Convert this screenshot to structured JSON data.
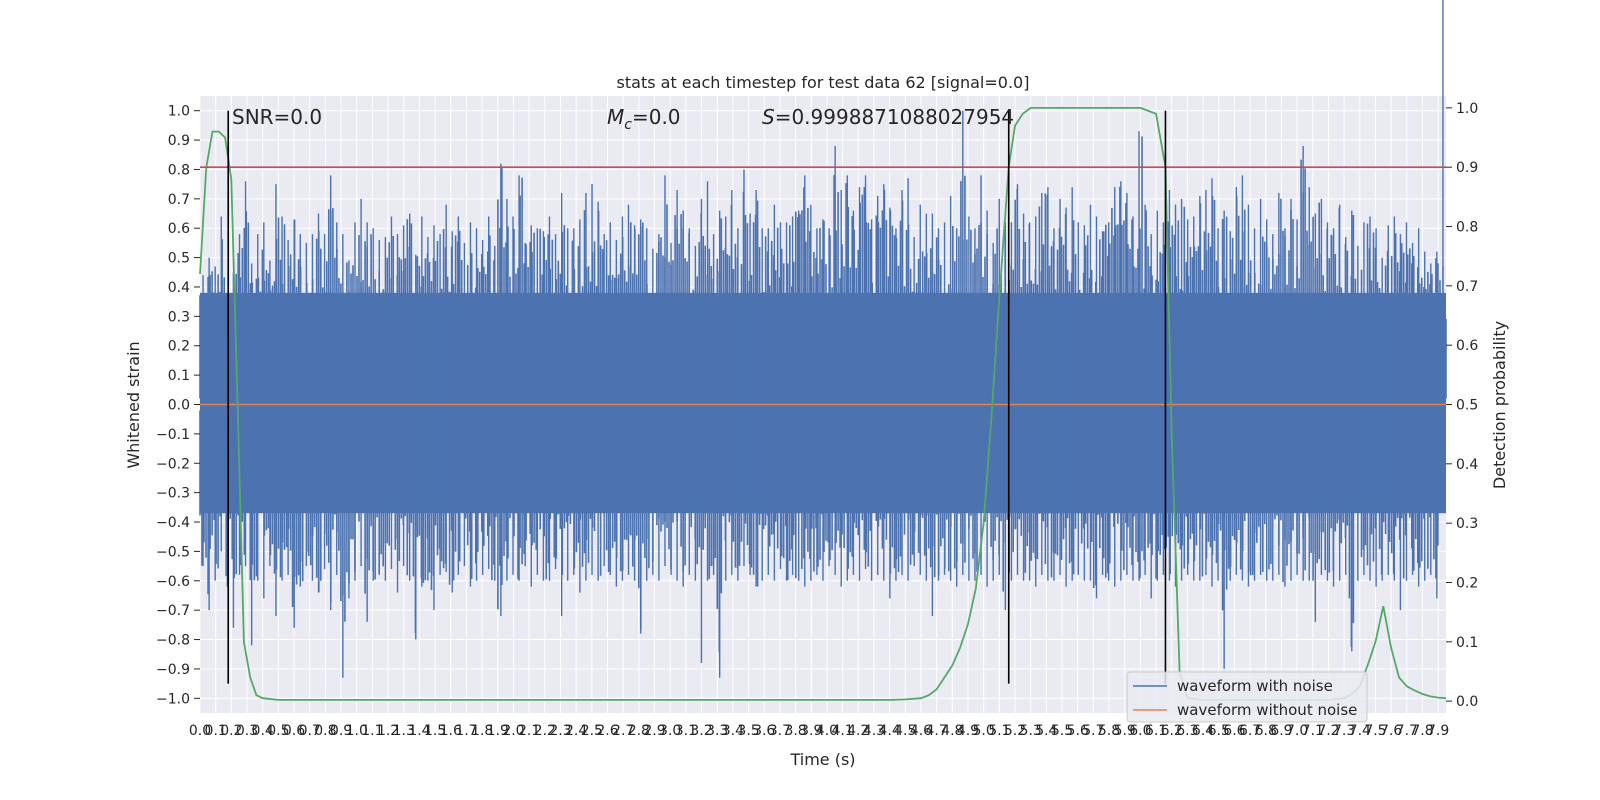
{
  "chart_data": {
    "type": "line",
    "title": "stats at each timestep for test data 62 [signal=0.0]",
    "xlabel": "Time (s)",
    "ylabel": "Whitened strain",
    "y2label": "Detection probability",
    "xlim": [
      0.0,
      7.95
    ],
    "ylim": [
      -1.05,
      1.05
    ],
    "y2lim": [
      -0.02,
      1.02
    ],
    "x_ticks": [
      0.0,
      0.1,
      0.2,
      0.3,
      0.4,
      0.5,
      0.6,
      0.7,
      0.8,
      0.9,
      1.0,
      1.1,
      1.2,
      1.3,
      1.4,
      1.5,
      1.6,
      1.7,
      1.8,
      1.9,
      2.0,
      2.1,
      2.2,
      2.3,
      2.4,
      2.5,
      2.6,
      2.7,
      2.8,
      2.9,
      3.0,
      3.1,
      3.2,
      3.3,
      3.4,
      3.5,
      3.6,
      3.7,
      3.8,
      3.9,
      4.0,
      4.1,
      4.2,
      4.3,
      4.4,
      4.5,
      4.6,
      4.7,
      4.8,
      4.9,
      5.0,
      5.1,
      5.2,
      5.3,
      5.4,
      5.5,
      5.6,
      5.7,
      5.8,
      5.9,
      6.0,
      6.1,
      6.2,
      6.3,
      6.4,
      6.5,
      6.6,
      6.7,
      6.8,
      6.9,
      7.0,
      7.1,
      7.2,
      7.3,
      7.4,
      7.5,
      7.6,
      7.7,
      7.8,
      7.9
    ],
    "y_ticks": [
      -1.0,
      -0.9,
      -0.8,
      -0.7,
      -0.6,
      -0.5,
      -0.4,
      -0.3,
      -0.2,
      -0.1,
      0.0,
      0.1,
      0.2,
      0.3,
      0.4,
      0.5,
      0.6,
      0.7,
      0.8,
      0.9,
      1.0
    ],
    "y2_ticks": [
      0.0,
      0.1,
      0.2,
      0.3,
      0.4,
      0.5,
      0.6,
      0.7,
      0.8,
      0.9,
      1.0
    ],
    "threshold": 0.9,
    "vlines": [
      0.18,
      5.16,
      6.16
    ],
    "annotations": [
      "SNR=0.0",
      "M_c=0.0",
      "S=0.9998871088027954"
    ],
    "legend": {
      "position": "lower-right"
    },
    "grid": true,
    "series": [
      {
        "name": "waveform with noise",
        "color": "#4c72b0",
        "axis": "left",
        "x_range": [
          0.0,
          7.95
        ],
        "positive_envelope": [
          0.44,
          0.5,
          0.47,
          0.64,
          0.37,
          0.45,
          0.58,
          0.76,
          0.48,
          0.58,
          0.62,
          0.49,
          0.75,
          0.64,
          0.56,
          0.63,
          0.58,
          0.55,
          0.58,
          0.65,
          0.58,
          0.78,
          0.62,
          0.58,
          0.49,
          0.62,
          0.7,
          0.62,
          0.6,
          0.56,
          0.57,
          0.64,
          0.58,
          0.61,
          0.65,
          0.51,
          0.64,
          0.57,
          0.61,
          0.58,
          0.68,
          0.59,
          0.64,
          0.55,
          0.62,
          0.6,
          0.56,
          0.64,
          0.54,
          0.82,
          0.7,
          0.64,
          0.78,
          0.55,
          0.61,
          0.6,
          0.59,
          0.64,
          0.58,
          0.72,
          0.6,
          0.6,
          0.63,
          0.72,
          0.75,
          0.69,
          0.58,
          0.62,
          0.56,
          0.64,
          0.68,
          0.61,
          0.63,
          0.6,
          0.53,
          0.58,
          0.78,
          0.55,
          0.73,
          0.66,
          0.6,
          0.54,
          0.7,
          0.76,
          0.58,
          0.66,
          0.64,
          0.73,
          0.6,
          0.8,
          0.65,
          0.73,
          0.6,
          0.6,
          0.68,
          0.62,
          0.62,
          0.64,
          0.66,
          0.78,
          0.68,
          0.6,
          0.63,
          0.6,
          0.88,
          0.73,
          0.78,
          0.66,
          0.74,
          0.78,
          0.63,
          0.71,
          0.75,
          0.67,
          0.6,
          0.73,
          0.77,
          0.57,
          0.68,
          0.65,
          0.65,
          0.6,
          0.62,
          0.71,
          0.6,
          1.0,
          0.64,
          0.6,
          0.78,
          0.66,
          0.55,
          0.7,
          0.62,
          0.62,
          0.75,
          0.65,
          0.62,
          0.64,
          0.72,
          0.74,
          0.6,
          0.7,
          0.67,
          0.74,
          0.62,
          0.61,
          0.68,
          0.64,
          0.59,
          0.62,
          0.74,
          0.76,
          0.72,
          0.64,
          0.93,
          0.68,
          0.58,
          0.66,
          0.62,
          0.73,
          0.68,
          0.7,
          0.63,
          0.64,
          0.71,
          0.73,
          0.77,
          0.6,
          0.66,
          0.59,
          0.74,
          0.78,
          0.68,
          0.6,
          0.7,
          0.63,
          0.58,
          0.72,
          0.6,
          0.7,
          0.63,
          0.88,
          0.74,
          0.65,
          0.7,
          0.62,
          0.6,
          0.68,
          0.57,
          0.66,
          0.54,
          0.62,
          0.64,
          0.6,
          0.5,
          0.61,
          0.64,
          0.58,
          0.62,
          0.55,
          0.6,
          0.52,
          0.48,
          0.52,
          0.47
        ],
        "negative_envelope": [
          -0.55,
          -0.7,
          -0.6,
          -0.5,
          -0.62,
          -0.76,
          -0.58,
          -0.55,
          -0.82,
          -0.6,
          -0.66,
          -0.55,
          -0.72,
          -0.6,
          -0.58,
          -0.76,
          -0.62,
          -0.55,
          -0.6,
          -0.64,
          -0.56,
          -0.7,
          -0.58,
          -0.93,
          -0.66,
          -0.6,
          -0.55,
          -0.74,
          -0.6,
          -0.58,
          -0.6,
          -0.56,
          -0.64,
          -0.55,
          -0.6,
          -0.8,
          -0.62,
          -0.6,
          -0.7,
          -0.58,
          -0.57,
          -0.64,
          -0.58,
          -0.55,
          -0.62,
          -0.6,
          -0.58,
          -0.56,
          -0.6,
          -0.72,
          -0.6,
          -0.58,
          -0.6,
          -0.55,
          -0.62,
          -0.58,
          -0.6,
          -0.6,
          -0.56,
          -0.72,
          -0.6,
          -0.58,
          -0.64,
          -0.6,
          -0.58,
          -0.6,
          -0.55,
          -0.58,
          -0.62,
          -0.6,
          -0.58,
          -0.6,
          -0.78,
          -0.6,
          -0.58,
          -0.6,
          -0.55,
          -0.58,
          -0.6,
          -0.62,
          -0.58,
          -0.6,
          -0.88,
          -0.6,
          -0.58,
          -0.93,
          -0.6,
          -0.58,
          -0.6,
          -0.55,
          -0.58,
          -0.62,
          -0.6,
          -0.58,
          -0.6,
          -0.56,
          -0.6,
          -0.58,
          -0.6,
          -0.62,
          -0.6,
          -0.58,
          -0.6,
          -0.55,
          -0.58,
          -0.62,
          -0.6,
          -0.58,
          -0.6,
          -0.56,
          -0.6,
          -0.58,
          -0.6,
          -0.66,
          -0.6,
          -0.58,
          -0.6,
          -0.55,
          -0.58,
          -0.6,
          -0.72,
          -0.6,
          -0.58,
          -0.6,
          -0.62,
          -0.58,
          -0.6,
          -0.6,
          -0.58,
          -0.62,
          -0.6,
          -0.58,
          -0.7,
          -0.6,
          -0.58,
          -0.6,
          -0.6,
          -0.62,
          -0.58,
          -0.6,
          -0.6,
          -0.58,
          -0.62,
          -0.6,
          -0.58,
          -0.6,
          -0.6,
          -0.66,
          -0.58,
          -0.6,
          -0.62,
          -0.6,
          -0.58,
          -0.6,
          -0.6,
          -0.58,
          -0.66,
          -0.6,
          -0.58,
          -0.6,
          -0.62,
          -0.6,
          -0.58,
          -0.6,
          -0.6,
          -0.58,
          -0.62,
          -0.6,
          -0.9,
          -0.6,
          -0.58,
          -0.6,
          -0.62,
          -0.6,
          -0.58,
          -0.6,
          -0.6,
          -0.58,
          -0.62,
          -0.6,
          -0.58,
          -0.6,
          -0.6,
          -0.74,
          -0.58,
          -0.6,
          -0.62,
          -0.6,
          -0.58,
          -0.84,
          -0.6,
          -0.58,
          -0.6,
          -0.62,
          -0.6,
          -0.58,
          -0.6,
          -0.7,
          -0.6,
          -0.58,
          -0.62,
          -0.6,
          -0.58,
          -0.66
        ]
      },
      {
        "name": "waveform without noise",
        "color": "#dd8452",
        "axis": "left",
        "x": [
          0.0,
          7.95
        ],
        "y": [
          0.0,
          0.0
        ]
      },
      {
        "name": "",
        "color": "#55a868",
        "axis": "right",
        "x": [
          0.0,
          0.04,
          0.08,
          0.12,
          0.16,
          0.2,
          0.24,
          0.28,
          0.32,
          0.36,
          0.4,
          0.5,
          0.6,
          0.8,
          1.0,
          1.5,
          2.0,
          2.5,
          3.0,
          3.5,
          4.0,
          4.2,
          4.4,
          4.5,
          4.6,
          4.65,
          4.7,
          4.75,
          4.8,
          4.85,
          4.9,
          4.95,
          5.0,
          5.05,
          5.1,
          5.16,
          5.2,
          5.25,
          5.3,
          5.35,
          5.4,
          5.5,
          5.6,
          5.8,
          6.0,
          6.1,
          6.12,
          6.16,
          6.2,
          6.25,
          6.3,
          6.4,
          6.6,
          6.8,
          7.0,
          7.2,
          7.3,
          7.35,
          7.4,
          7.45,
          7.5,
          7.55,
          7.6,
          7.65,
          7.7,
          7.75,
          7.8,
          7.85,
          7.9,
          7.95
        ],
        "y": [
          0.72,
          0.9,
          0.96,
          0.96,
          0.95,
          0.88,
          0.5,
          0.1,
          0.04,
          0.01,
          0.005,
          0.002,
          0.002,
          0.002,
          0.002,
          0.002,
          0.002,
          0.002,
          0.002,
          0.002,
          0.002,
          0.002,
          0.002,
          0.003,
          0.005,
          0.01,
          0.02,
          0.04,
          0.06,
          0.09,
          0.13,
          0.19,
          0.3,
          0.48,
          0.68,
          0.9,
          0.97,
          0.99,
          1.0,
          1.0,
          1.0,
          1.0,
          1.0,
          1.0,
          1.0,
          0.99,
          0.96,
          0.9,
          0.45,
          0.05,
          0.005,
          0.002,
          0.002,
          0.002,
          0.002,
          0.002,
          0.005,
          0.012,
          0.025,
          0.06,
          0.1,
          0.16,
          0.09,
          0.04,
          0.025,
          0.018,
          0.012,
          0.008,
          0.006,
          0.005
        ]
      },
      {
        "name": "",
        "color": "#c44e52",
        "axis": "right",
        "x": [
          0.0,
          7.95
        ],
        "y": [
          0.9,
          0.9
        ]
      }
    ]
  }
}
